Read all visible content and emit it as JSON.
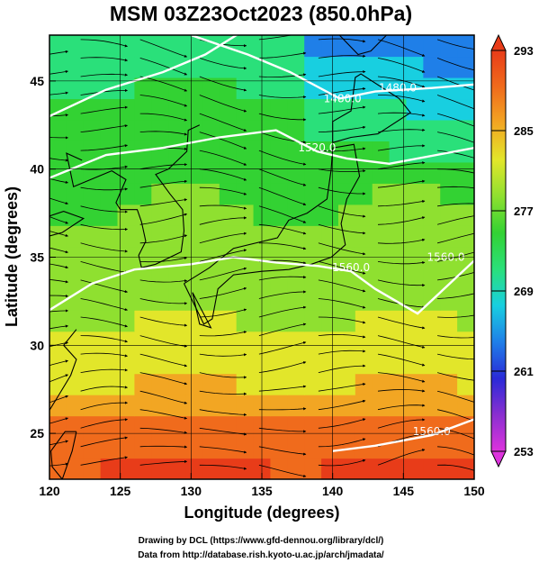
{
  "chart_data": {
    "type": "heatmap",
    "title": "MSM 03Z23Oct2023 (850.0hPa)",
    "xlabel": "Longitude (degrees)",
    "ylabel": "Latitude  (degrees)",
    "xlim": [
      120,
      150
    ],
    "ylim": [
      22.4,
      47.6
    ],
    "x_ticks": [
      "120",
      "125",
      "130",
      "135",
      "140",
      "145",
      "150"
    ],
    "y_ticks": [
      "25",
      "30",
      "35",
      "40",
      "45"
    ],
    "grid": true,
    "colorbar": {
      "range": [
        253,
        293
      ],
      "ticks": [
        "293",
        "285",
        "277",
        "269",
        "261",
        "253"
      ],
      "colors": [
        "#dd33dd",
        "#8a2fd0",
        "#2a2ad8",
        "#1f7fe8",
        "#18cfe0",
        "#2ae07a",
        "#33d233",
        "#8fe030",
        "#e2e62a",
        "#f2a623",
        "#f06b1c",
        "#e83c19"
      ]
    },
    "contours": [
      {
        "label": "1480.0",
        "x": 144.6,
        "y": 44.4
      },
      {
        "label": "1480.0",
        "x": 140.7,
        "y": 43.8
      },
      {
        "label": "1520.0",
        "x": 138.9,
        "y": 41.0
      },
      {
        "label": "1560.0",
        "x": 141.3,
        "y": 34.2
      },
      {
        "label": "1560.0",
        "x": 148.0,
        "y": 34.8
      },
      {
        "label": "1560.0",
        "x": 147.0,
        "y": 24.9
      }
    ],
    "credits": {
      "line1": "Drawing by DCL (https://www.gfd-dennou.org/library/dcl/)",
      "line2": "Data from http://database.rish.kyoto-u.ac.jp/arch/jmadata/"
    }
  }
}
